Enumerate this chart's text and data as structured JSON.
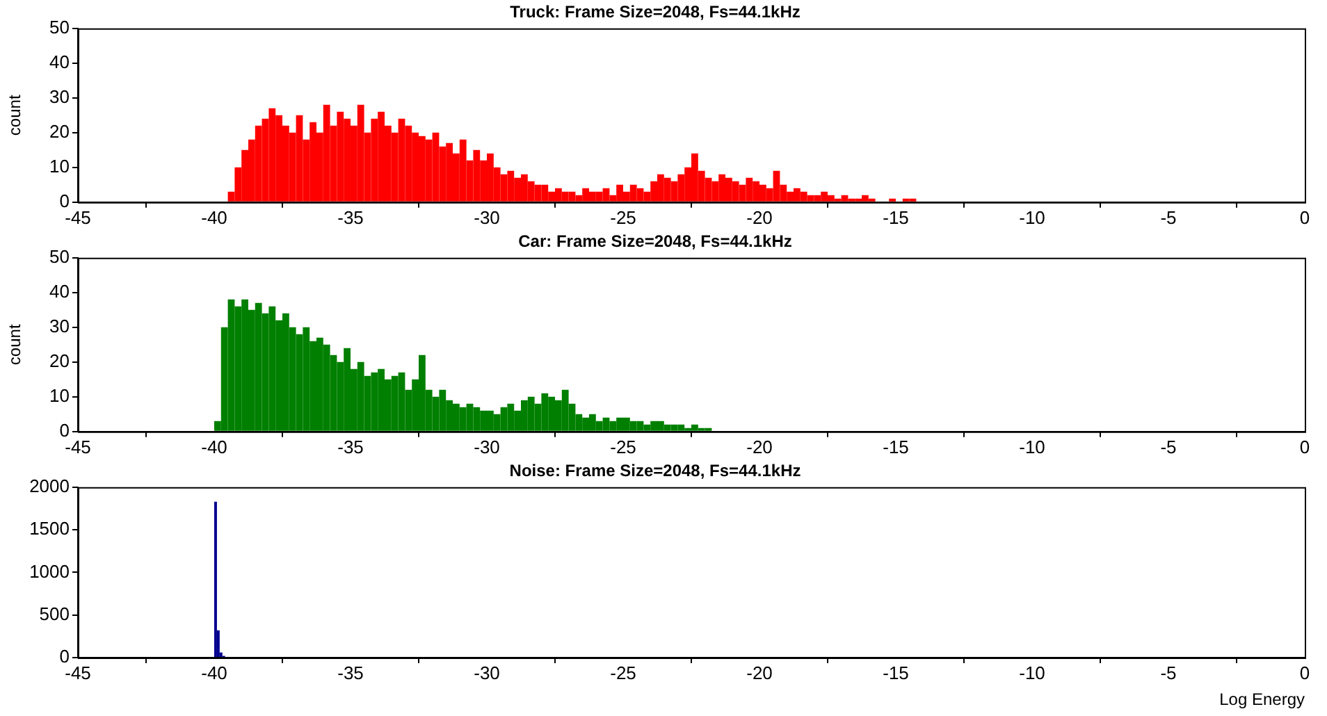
{
  "chart_data": [
    {
      "type": "histogram",
      "title": "Truck: Frame Size=2048, Fs=44.1kHz",
      "ylabel": "count",
      "color": "#ff0000",
      "bins": [
        -39.5,
        -39.25,
        -39,
        -38.75,
        -38.5,
        -38.25,
        -38,
        -37.75,
        -37.5,
        -37.25,
        -37,
        -36.75,
        -36.5,
        -36.25,
        -36,
        -35.75,
        -35.5,
        -35.25,
        -35,
        -34.75,
        -34.5,
        -34.25,
        -34,
        -33.75,
        -33.5,
        -33.25,
        -33,
        -32.75,
        -32.5,
        -32.25,
        -32,
        -31.75,
        -31.5,
        -31.25,
        -31,
        -30.75,
        -30.5,
        -30.25,
        -30,
        -29.75,
        -29.5,
        -29.25,
        -29,
        -28.75,
        -28.5,
        -28.25,
        -28,
        -27.75,
        -27.5,
        -27.25,
        -27,
        -26.75,
        -26.5,
        -26.25,
        -26,
        -25.75,
        -25.5,
        -25.25,
        -25,
        -24.75,
        -24.5,
        -24.25,
        -24,
        -23.75,
        -23.5,
        -23.25,
        -23,
        -22.75,
        -22.5,
        -22.25,
        -22,
        -21.75,
        -21.5,
        -21.25,
        -21,
        -20.75,
        -20.5,
        -20.25,
        -20,
        -19.75,
        -19.5,
        -19.25,
        -19,
        -18.75,
        -18.5,
        -18.25,
        -18,
        -17.75,
        -17.5,
        -17.25,
        -17,
        -16.75,
        -16.5,
        -16.25,
        -16,
        -15.75,
        -15.5,
        -15.25,
        -15,
        -14.75,
        -14.5,
        -14.25,
        -14
      ],
      "values": [
        3,
        10,
        15,
        18,
        22,
        24,
        27,
        25,
        22,
        20,
        25,
        18,
        23,
        20,
        28,
        22,
        26,
        24,
        22,
        28,
        20,
        24,
        26,
        22,
        20,
        24,
        22,
        20,
        19,
        18,
        20,
        16,
        17,
        14,
        18,
        12,
        15,
        12,
        14,
        10,
        8,
        9,
        7,
        8,
        6,
        5,
        5,
        3,
        4,
        3,
        3,
        2,
        4,
        3,
        3,
        4,
        2,
        5,
        3,
        5,
        4,
        3,
        6,
        8,
        7,
        6,
        8,
        10,
        14,
        9,
        7,
        6,
        8,
        7,
        6,
        5,
        7,
        6,
        5,
        4,
        9,
        5,
        3,
        4,
        3,
        2,
        2,
        3,
        2,
        1,
        2,
        1,
        1,
        2,
        1,
        0,
        0,
        1,
        0,
        1,
        1,
        0
      ],
      "xlim": [
        -45,
        0
      ],
      "xticks": [
        -45,
        -40,
        -35,
        -30,
        -25,
        -20,
        -15,
        -10,
        -5,
        0
      ],
      "ylim": [
        0,
        50
      ],
      "yticks": [
        0,
        10,
        20,
        30,
        40,
        50
      ]
    },
    {
      "type": "histogram",
      "title": "Car: Frame Size=2048, Fs=44.1kHz",
      "ylabel": "count",
      "color": "#007f00",
      "bins": [
        -40,
        -39.75,
        -39.5,
        -39.25,
        -39,
        -38.75,
        -38.5,
        -38.25,
        -38,
        -37.75,
        -37.5,
        -37.25,
        -37,
        -36.75,
        -36.5,
        -36.25,
        -36,
        -35.75,
        -35.5,
        -35.25,
        -35,
        -34.75,
        -34.5,
        -34.25,
        -34,
        -33.75,
        -33.5,
        -33.25,
        -33,
        -32.75,
        -32.5,
        -32.25,
        -32,
        -31.75,
        -31.5,
        -31.25,
        -31,
        -30.75,
        -30.5,
        -30.25,
        -30,
        -29.75,
        -29.5,
        -29.25,
        -29,
        -28.75,
        -28.5,
        -28.25,
        -28,
        -27.75,
        -27.5,
        -27.25,
        -27,
        -26.75,
        -26.5,
        -26.25,
        -26,
        -25.75,
        -25.5,
        -25.25,
        -25,
        -24.75,
        -24.5,
        -24.25,
        -24,
        -23.75,
        -23.5,
        -23.25,
        -23,
        -22.75,
        -22.5,
        -22.25,
        -22,
        -21.75
      ],
      "values": [
        3,
        30,
        38,
        36,
        38,
        35,
        37,
        34,
        36,
        32,
        34,
        30,
        28,
        30,
        26,
        27,
        25,
        22,
        20,
        24,
        18,
        20,
        16,
        17,
        18,
        15,
        16,
        17,
        12,
        15,
        22,
        12,
        10,
        12,
        9,
        8,
        7,
        8,
        7,
        6,
        6,
        5,
        7,
        8,
        6,
        9,
        10,
        8,
        11,
        10,
        9,
        12,
        8,
        5,
        4,
        5,
        3,
        4,
        3,
        4,
        4,
        3,
        3,
        2,
        3,
        3,
        2,
        2,
        2,
        1,
        2,
        1,
        1
      ],
      "xlim": [
        -45,
        0
      ],
      "xticks": [
        -45,
        -40,
        -35,
        -30,
        -25,
        -20,
        -15,
        -10,
        -5,
        0
      ],
      "ylim": [
        0,
        50
      ],
      "yticks": [
        0,
        10,
        20,
        30,
        40,
        50
      ]
    },
    {
      "type": "histogram",
      "title": "Noise: Frame Size=2048, Fs=44.1kHz",
      "xlabel": "Log Energy",
      "color": "#00008f",
      "bins": [
        -40,
        -39.9,
        -39.8,
        -39.7,
        -39.6
      ],
      "values": [
        1830,
        320,
        60,
        20
      ],
      "xlim": [
        -45,
        0
      ],
      "xticks": [
        -45,
        -40,
        -35,
        -30,
        -25,
        -20,
        -15,
        -10,
        -5,
        0
      ],
      "ylim": [
        0,
        2000
      ],
      "yticks": [
        0,
        500,
        1000,
        1500,
        2000
      ]
    }
  ]
}
